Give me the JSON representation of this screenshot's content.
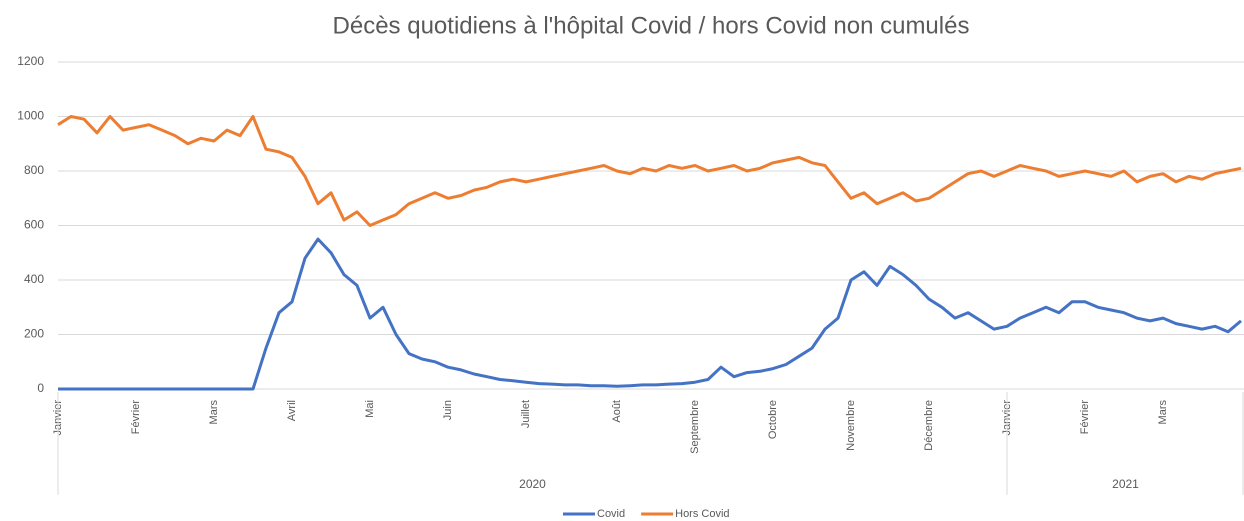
{
  "chart_data": {
    "type": "line",
    "title": "Décès quotidiens à l'hôpital Covid / hors Covid non cumulés",
    "categories": [
      "Janvier",
      null,
      null,
      null,
      null,
      null,
      "Février",
      null,
      null,
      null,
      null,
      null,
      "Mars",
      null,
      null,
      null,
      null,
      null,
      "Avril",
      null,
      null,
      null,
      null,
      null,
      "Mai",
      null,
      null,
      null,
      null,
      null,
      "Juin",
      null,
      null,
      null,
      null,
      null,
      "Juillet",
      null,
      null,
      null,
      null,
      null,
      null,
      "Août",
      null,
      null,
      null,
      null,
      null,
      "Septembre",
      null,
      null,
      null,
      null,
      null,
      "Octobre",
      null,
      null,
      null,
      null,
      null,
      "Novembre",
      null,
      null,
      null,
      null,
      null,
      "Décembre",
      null,
      null,
      null,
      null,
      null,
      "Janvier",
      null,
      null,
      null,
      null,
      null,
      "Février",
      null,
      null,
      null,
      null,
      null,
      "Mars",
      null,
      null,
      null,
      null,
      null,
      null
    ],
    "years": [
      "2020",
      "2021"
    ],
    "series": [
      {
        "name": "Covid",
        "color": "#4472c4",
        "values": [
          0,
          0,
          0,
          0,
          0,
          0,
          0,
          0,
          0,
          0,
          0,
          0,
          0,
          0,
          0,
          0,
          150,
          280,
          320,
          480,
          550,
          500,
          420,
          380,
          260,
          300,
          200,
          130,
          110,
          100,
          80,
          70,
          55,
          45,
          35,
          30,
          25,
          20,
          18,
          15,
          15,
          12,
          12,
          10,
          12,
          15,
          15,
          18,
          20,
          25,
          35,
          80,
          45,
          60,
          65,
          75,
          90,
          120,
          150,
          220,
          260,
          400,
          430,
          380,
          450,
          420,
          380,
          330,
          300,
          260,
          280,
          250,
          220,
          230,
          260,
          280,
          300,
          280,
          320,
          320,
          300,
          290,
          280,
          260,
          250,
          260,
          240,
          230,
          220,
          230,
          210,
          250
        ]
      },
      {
        "name": "Hors Covid",
        "color": "#ed7d31",
        "values": [
          970,
          1000,
          990,
          940,
          1000,
          950,
          960,
          970,
          950,
          930,
          900,
          920,
          910,
          950,
          930,
          1000,
          880,
          870,
          850,
          780,
          680,
          720,
          620,
          650,
          600,
          620,
          640,
          680,
          700,
          720,
          700,
          710,
          730,
          740,
          760,
          770,
          760,
          770,
          780,
          790,
          800,
          810,
          820,
          800,
          790,
          810,
          800,
          820,
          810,
          820,
          800,
          810,
          820,
          800,
          810,
          830,
          840,
          850,
          830,
          820,
          760,
          700,
          720,
          680,
          700,
          720,
          690,
          700,
          730,
          760,
          790,
          800,
          780,
          800,
          820,
          810,
          800,
          780,
          790,
          800,
          790,
          780,
          800,
          760,
          780,
          790,
          760,
          780,
          770,
          790,
          800,
          810
        ]
      }
    ],
    "ylim": [
      0,
      1200
    ],
    "yticks": [
      0,
      200,
      400,
      600,
      800,
      1000,
      1200
    ],
    "grid": true,
    "legend": "bottom"
  }
}
